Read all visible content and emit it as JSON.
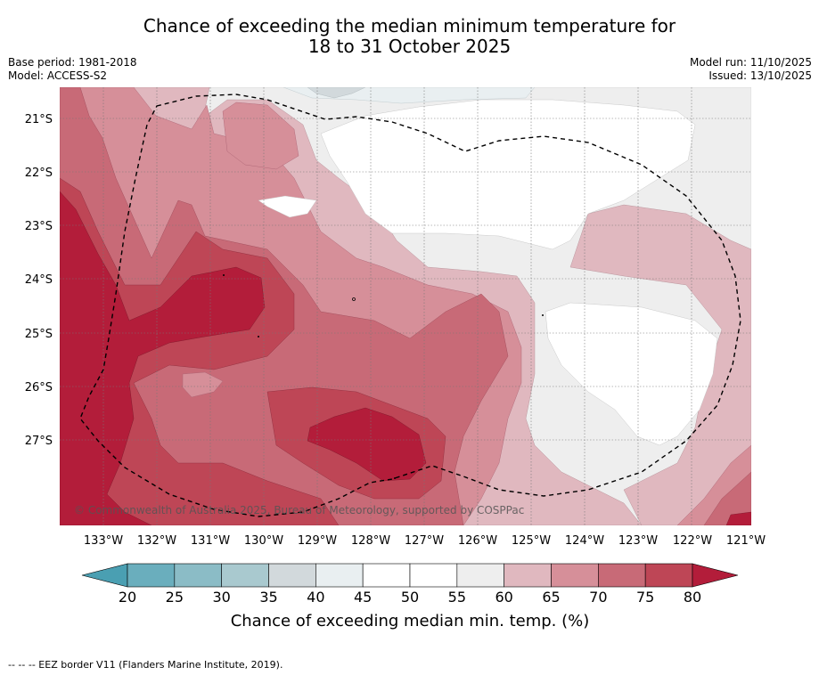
{
  "header": {
    "title_line1": "Chance of exceeding the median minimum temperature for",
    "title_line2": "18 to 31 October 2025",
    "base_period": "Base period: 1981-2018",
    "model": "Model: ACCESS-S2",
    "model_run": "Model run: 11/10/2025",
    "issued": "Issued: 13/10/2025"
  },
  "map": {
    "lat_labels": [
      "21°S",
      "22°S",
      "23°S",
      "24°S",
      "25°S",
      "26°S",
      "27°S"
    ],
    "lon_labels": [
      "133°W",
      "132°W",
      "131°W",
      "130°W",
      "129°W",
      "128°W",
      "127°W",
      "126°W",
      "125°W",
      "124°W",
      "123°W",
      "122°W",
      "121°W"
    ],
    "copyright": "© Commonwealth of Australia 2025, Bureau of Meteorology, supported by COSPPac"
  },
  "legend": {
    "ticks": [
      "20",
      "25",
      "30",
      "35",
      "40",
      "45",
      "50",
      "55",
      "60",
      "65",
      "70",
      "75",
      "80"
    ],
    "colors": [
      "#6aaebd",
      "#8bbcc6",
      "#a9c9cf",
      "#d2d9dc",
      "#e9eff1",
      "#ffffff",
      "#ffffff",
      "#eeeeee",
      "#e0b8bf",
      "#d68f99",
      "#c86a77",
      "#be4656"
    ],
    "under_color": "#4a9fb2",
    "over_color": "#b31d3a",
    "label": "Chance of exceeding median min. temp. (%)"
  },
  "footer": {
    "eez_note": "--  --  -- EEZ border V11 (Flanders Marine Institute, 2019)."
  }
}
